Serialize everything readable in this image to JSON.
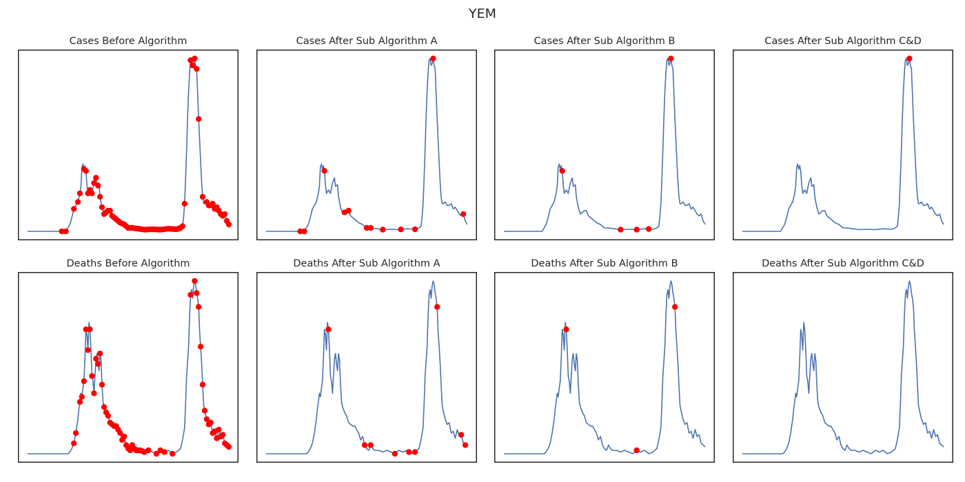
{
  "suptitle": "YEM",
  "colors": {
    "line": "#4c72b0",
    "marker": "#ff0000",
    "frame": "#262626"
  },
  "chart_data": [
    {
      "type": "line",
      "title": "Cases Before Algorithm",
      "metric": "cases",
      "xlabel": "",
      "ylabel": "",
      "ticks": "hidden",
      "grid": false,
      "marker_x": [
        0.17,
        0.19,
        0.23,
        0.25,
        0.26,
        0.28,
        0.29,
        0.3,
        0.31,
        0.32,
        0.33,
        0.34,
        0.35,
        0.36,
        0.37,
        0.38,
        0.39,
        0.4,
        0.41,
        0.42,
        0.43,
        0.44,
        0.45,
        0.46,
        0.47,
        0.48,
        0.49,
        0.5,
        0.51,
        0.52,
        0.53,
        0.54,
        0.55,
        0.56,
        0.57,
        0.58,
        0.59,
        0.6,
        0.61,
        0.62,
        0.63,
        0.64,
        0.65,
        0.66,
        0.67,
        0.68,
        0.69,
        0.7,
        0.71,
        0.72,
        0.73,
        0.74,
        0.75,
        0.76,
        0.77,
        0.78,
        0.81,
        0.82,
        0.83,
        0.84,
        0.85,
        0.87,
        0.89,
        0.9,
        0.91,
        0.92,
        0.93,
        0.94,
        0.95,
        0.96,
        0.97,
        0.98,
        0.99,
        1.0
      ]
    },
    {
      "type": "line",
      "title": "Cases After Sub Algorithm A",
      "metric": "cases",
      "xlabel": "",
      "ylabel": "",
      "ticks": "hidden",
      "grid": false,
      "marker_x": [
        0.17,
        0.19,
        0.29,
        0.39,
        0.41,
        0.5,
        0.52,
        0.58,
        0.67,
        0.74,
        0.83,
        0.98
      ]
    },
    {
      "type": "line",
      "title": "Cases After Sub Algorithm B",
      "metric": "cases",
      "xlabel": "",
      "ylabel": "",
      "ticks": "hidden",
      "grid": false,
      "marker_x": [
        0.29,
        0.58,
        0.66,
        0.72,
        0.83
      ]
    },
    {
      "type": "line",
      "title": "Cases After Sub Algorithm C&D",
      "metric": "cases",
      "xlabel": "",
      "ylabel": "",
      "ticks": "hidden",
      "grid": false,
      "marker_x": [
        0.83
      ]
    },
    {
      "type": "line",
      "title": "Deaths Before Algorithm",
      "metric": "deaths",
      "xlabel": "",
      "ylabel": "",
      "ticks": "hidden",
      "grid": false,
      "marker_x": [
        0.23,
        0.24,
        0.26,
        0.27,
        0.28,
        0.29,
        0.3,
        0.31,
        0.32,
        0.33,
        0.34,
        0.35,
        0.36,
        0.37,
        0.38,
        0.39,
        0.4,
        0.41,
        0.42,
        0.43,
        0.44,
        0.45,
        0.46,
        0.47,
        0.48,
        0.49,
        0.5,
        0.51,
        0.52,
        0.53,
        0.54,
        0.55,
        0.56,
        0.57,
        0.58,
        0.6,
        0.64,
        0.66,
        0.68,
        0.72,
        0.81,
        0.83,
        0.84,
        0.85,
        0.86,
        0.87,
        0.88,
        0.89,
        0.9,
        0.91,
        0.92,
        0.93,
        0.94,
        0.95,
        0.96,
        0.97,
        0.98,
        0.99,
        1.0
      ]
    },
    {
      "type": "line",
      "title": "Deaths After Sub Algorithm A",
      "metric": "deaths",
      "xlabel": "",
      "ylabel": "",
      "ticks": "hidden",
      "grid": false,
      "marker_x": [
        0.31,
        0.49,
        0.52,
        0.64,
        0.71,
        0.74,
        0.85,
        0.97,
        0.99
      ]
    },
    {
      "type": "line",
      "title": "Deaths After Sub Algorithm B",
      "metric": "deaths",
      "xlabel": "",
      "ylabel": "",
      "ticks": "hidden",
      "grid": false,
      "marker_x": [
        0.31,
        0.66,
        0.85
      ]
    },
    {
      "type": "line",
      "title": "Deaths After Sub Algorithm C&D",
      "metric": "deaths",
      "xlabel": "",
      "ylabel": "",
      "ticks": "hidden",
      "grid": false,
      "marker_x": []
    }
  ],
  "series_shapes": {
    "cases": [
      [
        0.0,
        0.0
      ],
      [
        0.16,
        0.0
      ],
      [
        0.17,
        0.0
      ],
      [
        0.19,
        0.0
      ],
      [
        0.2,
        0.02
      ],
      [
        0.21,
        0.04
      ],
      [
        0.22,
        0.08
      ],
      [
        0.23,
        0.13
      ],
      [
        0.24,
        0.15
      ],
      [
        0.25,
        0.17
      ],
      [
        0.26,
        0.22
      ],
      [
        0.265,
        0.26
      ],
      [
        0.27,
        0.37
      ],
      [
        0.275,
        0.39
      ],
      [
        0.28,
        0.36
      ],
      [
        0.285,
        0.38
      ],
      [
        0.29,
        0.35
      ],
      [
        0.295,
        0.27
      ],
      [
        0.3,
        0.22
      ],
      [
        0.31,
        0.24
      ],
      [
        0.32,
        0.22
      ],
      [
        0.33,
        0.28
      ],
      [
        0.34,
        0.31
      ],
      [
        0.345,
        0.26
      ],
      [
        0.355,
        0.27
      ],
      [
        0.36,
        0.2
      ],
      [
        0.37,
        0.14
      ],
      [
        0.38,
        0.1
      ],
      [
        0.39,
        0.11
      ],
      [
        0.4,
        0.12
      ],
      [
        0.41,
        0.12
      ],
      [
        0.42,
        0.09
      ],
      [
        0.43,
        0.08
      ],
      [
        0.44,
        0.07
      ],
      [
        0.45,
        0.06
      ],
      [
        0.46,
        0.05
      ],
      [
        0.48,
        0.04
      ],
      [
        0.5,
        0.02
      ],
      [
        0.52,
        0.02
      ],
      [
        0.55,
        0.015
      ],
      [
        0.58,
        0.01
      ],
      [
        0.62,
        0.012
      ],
      [
        0.66,
        0.01
      ],
      [
        0.7,
        0.015
      ],
      [
        0.74,
        0.012
      ],
      [
        0.76,
        0.02
      ],
      [
        0.77,
        0.03
      ],
      [
        0.775,
        0.08
      ],
      [
        0.78,
        0.16
      ],
      [
        0.785,
        0.3
      ],
      [
        0.79,
        0.47
      ],
      [
        0.795,
        0.65
      ],
      [
        0.8,
        0.81
      ],
      [
        0.805,
        0.92
      ],
      [
        0.81,
        0.99
      ],
      [
        0.815,
        1.0
      ],
      [
        0.82,
        0.96
      ],
      [
        0.825,
        0.97
      ],
      [
        0.83,
        1.0
      ],
      [
        0.835,
        0.96
      ],
      [
        0.84,
        0.94
      ],
      [
        0.845,
        0.8
      ],
      [
        0.85,
        0.65
      ],
      [
        0.855,
        0.52
      ],
      [
        0.86,
        0.4
      ],
      [
        0.865,
        0.28
      ],
      [
        0.87,
        0.2
      ],
      [
        0.875,
        0.16
      ],
      [
        0.88,
        0.16
      ],
      [
        0.89,
        0.17
      ],
      [
        0.9,
        0.15
      ],
      [
        0.91,
        0.15
      ],
      [
        0.92,
        0.16
      ],
      [
        0.93,
        0.13
      ],
      [
        0.94,
        0.14
      ],
      [
        0.95,
        0.12
      ],
      [
        0.96,
        0.1
      ],
      [
        0.97,
        0.09
      ],
      [
        0.98,
        0.1
      ],
      [
        0.99,
        0.06
      ],
      [
        1.0,
        0.04
      ]
    ],
    "deaths": [
      [
        0.0,
        0.0
      ],
      [
        0.2,
        0.0
      ],
      [
        0.21,
        0.01
      ],
      [
        0.22,
        0.03
      ],
      [
        0.23,
        0.06
      ],
      [
        0.24,
        0.12
      ],
      [
        0.25,
        0.2
      ],
      [
        0.255,
        0.26
      ],
      [
        0.26,
        0.3
      ],
      [
        0.265,
        0.35
      ],
      [
        0.27,
        0.33
      ],
      [
        0.275,
        0.38
      ],
      [
        0.28,
        0.42
      ],
      [
        0.285,
        0.55
      ],
      [
        0.29,
        0.72
      ],
      [
        0.295,
        0.69
      ],
      [
        0.3,
        0.6
      ],
      [
        0.305,
        0.76
      ],
      [
        0.31,
        0.72
      ],
      [
        0.315,
        0.6
      ],
      [
        0.32,
        0.45
      ],
      [
        0.325,
        0.42
      ],
      [
        0.33,
        0.35
      ],
      [
        0.335,
        0.45
      ],
      [
        0.34,
        0.55
      ],
      [
        0.345,
        0.58
      ],
      [
        0.35,
        0.52
      ],
      [
        0.355,
        0.48
      ],
      [
        0.36,
        0.58
      ],
      [
        0.365,
        0.54
      ],
      [
        0.37,
        0.4
      ],
      [
        0.375,
        0.3
      ],
      [
        0.38,
        0.27
      ],
      [
        0.39,
        0.24
      ],
      [
        0.4,
        0.22
      ],
      [
        0.41,
        0.18
      ],
      [
        0.42,
        0.17
      ],
      [
        0.43,
        0.16
      ],
      [
        0.44,
        0.16
      ],
      [
        0.45,
        0.14
      ],
      [
        0.46,
        0.12
      ],
      [
        0.47,
        0.08
      ],
      [
        0.48,
        0.1
      ],
      [
        0.49,
        0.05
      ],
      [
        0.5,
        0.03
      ],
      [
        0.51,
        0.02
      ],
      [
        0.52,
        0.05
      ],
      [
        0.53,
        0.03
      ],
      [
        0.54,
        0.02
      ],
      [
        0.56,
        0.02
      ],
      [
        0.58,
        0.01
      ],
      [
        0.6,
        0.02
      ],
      [
        0.62,
        0.01
      ],
      [
        0.64,
        0.0
      ],
      [
        0.66,
        0.02
      ],
      [
        0.68,
        0.01
      ],
      [
        0.7,
        0.02
      ],
      [
        0.72,
        0.0
      ],
      [
        0.74,
        0.01
      ],
      [
        0.76,
        0.03
      ],
      [
        0.77,
        0.08
      ],
      [
        0.78,
        0.15
      ],
      [
        0.785,
        0.28
      ],
      [
        0.79,
        0.45
      ],
      [
        0.8,
        0.62
      ],
      [
        0.805,
        0.8
      ],
      [
        0.81,
        0.92
      ],
      [
        0.815,
        0.95
      ],
      [
        0.82,
        0.9
      ],
      [
        0.825,
        0.97
      ],
      [
        0.83,
        1.0
      ],
      [
        0.835,
        0.98
      ],
      [
        0.84,
        0.93
      ],
      [
        0.845,
        0.9
      ],
      [
        0.85,
        0.85
      ],
      [
        0.855,
        0.7
      ],
      [
        0.86,
        0.62
      ],
      [
        0.865,
        0.52
      ],
      [
        0.87,
        0.4
      ],
      [
        0.875,
        0.28
      ],
      [
        0.88,
        0.25
      ],
      [
        0.89,
        0.2
      ],
      [
        0.9,
        0.17
      ],
      [
        0.91,
        0.18
      ],
      [
        0.92,
        0.12
      ],
      [
        0.93,
        0.13
      ],
      [
        0.94,
        0.09
      ],
      [
        0.95,
        0.14
      ],
      [
        0.96,
        0.1
      ],
      [
        0.97,
        0.11
      ],
      [
        0.98,
        0.06
      ],
      [
        0.99,
        0.05
      ],
      [
        1.0,
        0.04
      ]
    ]
  }
}
